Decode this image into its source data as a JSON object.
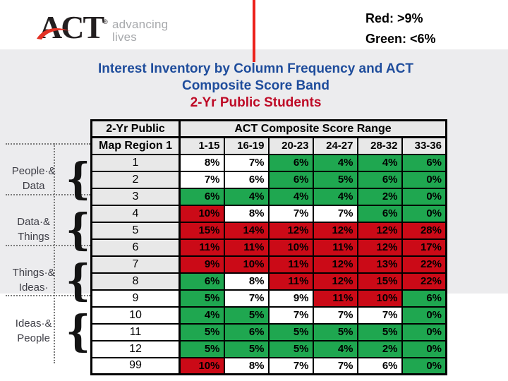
{
  "logo": {
    "wordmark": "ACT",
    "registered_mark": "®",
    "tagline_line1": "advancing",
    "tagline_line2": "lives"
  },
  "legend": {
    "red_rule": "Red: >9%",
    "green_rule": "Green: <6%"
  },
  "title": {
    "line1": "Interest Inventory by Column Frequency and ACT",
    "line2": "Composite Score Band",
    "line3": "2-Yr Public Students"
  },
  "side_groups": [
    {
      "line1": "People·&",
      "line2": "Data",
      "brace": "{"
    },
    {
      "line1": "Data·&",
      "line2": "Things",
      "brace": "{"
    },
    {
      "line1": "Things·&",
      "line2": "Ideas·",
      "brace": "{"
    },
    {
      "line1": "Ideas·&",
      "line2": "People",
      "brace": "{"
    }
  ],
  "table": {
    "header": {
      "top_left": "2-Yr Public",
      "span_title": "ACT Composite Score Range",
      "region_col": "Map Region 1",
      "ranges": [
        "1-15",
        "16-19",
        "20-23",
        "24-27",
        "28-32",
        "33-36"
      ]
    },
    "rows": [
      {
        "region": "1",
        "region_bg": "gray",
        "cells": [
          {
            "v": "8%",
            "c": "white"
          },
          {
            "v": "7%",
            "c": "white"
          },
          {
            "v": "6%",
            "c": "green"
          },
          {
            "v": "4%",
            "c": "green"
          },
          {
            "v": "4%",
            "c": "green"
          },
          {
            "v": "6%",
            "c": "green"
          }
        ]
      },
      {
        "region": "2",
        "region_bg": "gray",
        "cells": [
          {
            "v": "7%",
            "c": "white"
          },
          {
            "v": "6%",
            "c": "white"
          },
          {
            "v": "6%",
            "c": "green"
          },
          {
            "v": "5%",
            "c": "green"
          },
          {
            "v": "6%",
            "c": "green"
          },
          {
            "v": "0%",
            "c": "green"
          }
        ]
      },
      {
        "region": "3",
        "region_bg": "gray",
        "cells": [
          {
            "v": "6%",
            "c": "green"
          },
          {
            "v": "4%",
            "c": "green"
          },
          {
            "v": "4%",
            "c": "green"
          },
          {
            "v": "4%",
            "c": "green"
          },
          {
            "v": "2%",
            "c": "green"
          },
          {
            "v": "0%",
            "c": "green"
          }
        ]
      },
      {
        "region": "4",
        "region_bg": "gray",
        "cells": [
          {
            "v": "10%",
            "c": "red"
          },
          {
            "v": "8%",
            "c": "white"
          },
          {
            "v": "7%",
            "c": "white"
          },
          {
            "v": "7%",
            "c": "white"
          },
          {
            "v": "6%",
            "c": "green"
          },
          {
            "v": "0%",
            "c": "green"
          }
        ]
      },
      {
        "region": "5",
        "region_bg": "gray",
        "cells": [
          {
            "v": "15%",
            "c": "red"
          },
          {
            "v": "14%",
            "c": "red"
          },
          {
            "v": "12%",
            "c": "red"
          },
          {
            "v": "12%",
            "c": "red"
          },
          {
            "v": "12%",
            "c": "red"
          },
          {
            "v": "28%",
            "c": "red"
          }
        ]
      },
      {
        "region": "6",
        "region_bg": "gray",
        "cells": [
          {
            "v": "11%",
            "c": "red"
          },
          {
            "v": "11%",
            "c": "red"
          },
          {
            "v": "10%",
            "c": "red"
          },
          {
            "v": "11%",
            "c": "red"
          },
          {
            "v": "12%",
            "c": "red"
          },
          {
            "v": "17%",
            "c": "red"
          }
        ]
      },
      {
        "region": "7",
        "region_bg": "gray",
        "cells": [
          {
            "v": "9%",
            "c": "red"
          },
          {
            "v": "10%",
            "c": "red"
          },
          {
            "v": "11%",
            "c": "red"
          },
          {
            "v": "12%",
            "c": "red"
          },
          {
            "v": "13%",
            "c": "red"
          },
          {
            "v": "22%",
            "c": "red"
          }
        ]
      },
      {
        "region": "8",
        "region_bg": "gray",
        "cells": [
          {
            "v": "6%",
            "c": "green"
          },
          {
            "v": "8%",
            "c": "white"
          },
          {
            "v": "11%",
            "c": "red"
          },
          {
            "v": "12%",
            "c": "red"
          },
          {
            "v": "15%",
            "c": "red"
          },
          {
            "v": "22%",
            "c": "red"
          }
        ]
      },
      {
        "region": "9",
        "region_bg": "white",
        "cells": [
          {
            "v": "5%",
            "c": "green"
          },
          {
            "v": "7%",
            "c": "white"
          },
          {
            "v": "9%",
            "c": "white"
          },
          {
            "v": "11%",
            "c": "red"
          },
          {
            "v": "10%",
            "c": "red"
          },
          {
            "v": "6%",
            "c": "green"
          }
        ]
      },
      {
        "region": "10",
        "region_bg": "white",
        "cells": [
          {
            "v": "4%",
            "c": "green"
          },
          {
            "v": "5%",
            "c": "green"
          },
          {
            "v": "7%",
            "c": "white"
          },
          {
            "v": "7%",
            "c": "white"
          },
          {
            "v": "7%",
            "c": "white"
          },
          {
            "v": "0%",
            "c": "green"
          }
        ]
      },
      {
        "region": "11",
        "region_bg": "white",
        "cells": [
          {
            "v": "5%",
            "c": "green"
          },
          {
            "v": "6%",
            "c": "green"
          },
          {
            "v": "5%",
            "c": "green"
          },
          {
            "v": "5%",
            "c": "green"
          },
          {
            "v": "5%",
            "c": "green"
          },
          {
            "v": "0%",
            "c": "green"
          }
        ]
      },
      {
        "region": "12",
        "region_bg": "white",
        "cells": [
          {
            "v": "5%",
            "c": "green"
          },
          {
            "v": "5%",
            "c": "green"
          },
          {
            "v": "5%",
            "c": "green"
          },
          {
            "v": "4%",
            "c": "green"
          },
          {
            "v": "2%",
            "c": "green"
          },
          {
            "v": "0%",
            "c": "green"
          }
        ]
      },
      {
        "region": "99",
        "region_bg": "white",
        "cells": [
          {
            "v": "10%",
            "c": "red"
          },
          {
            "v": "8%",
            "c": "white"
          },
          {
            "v": "7%",
            "c": "white"
          },
          {
            "v": "7%",
            "c": "white"
          },
          {
            "v": "6%",
            "c": "white"
          },
          {
            "v": "0%",
            "c": "green"
          }
        ]
      }
    ]
  },
  "colors": {
    "cell_green": "#1FA750",
    "cell_red": "#CB0A17",
    "title_blue": "#1F4D9C",
    "title_red": "#BE0A26",
    "band_gray": "#ECECEE",
    "header_cell_gray": "#E8E8E8",
    "divider_red": "#EC221C",
    "tagline_gray": "#A7A9AC"
  }
}
